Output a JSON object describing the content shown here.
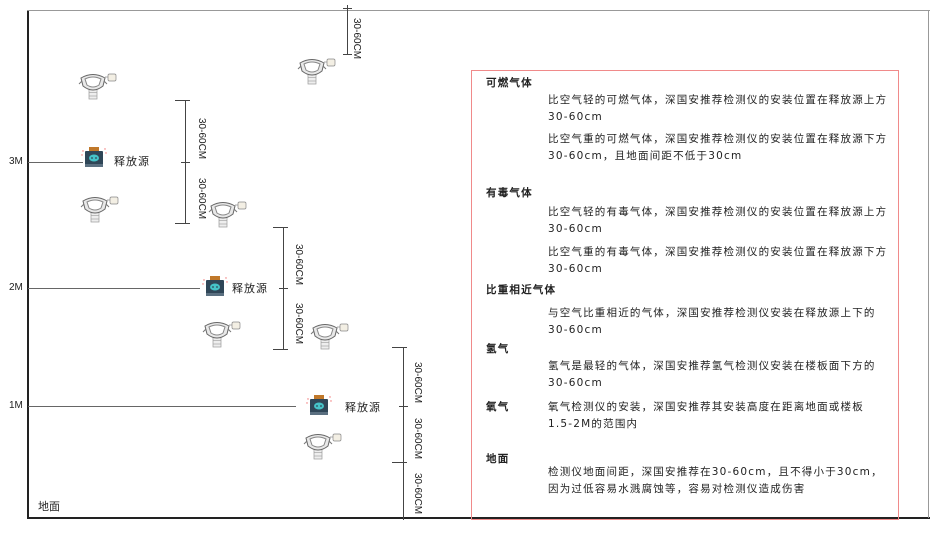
{
  "levels": {
    "l3": "3M",
    "l2": "2M",
    "l1": "1M",
    "ground": "地面"
  },
  "source_label": "释放源",
  "dimension_label": "30-60CM",
  "colors": {
    "notes_border": "#f08a8a",
    "source_body": "#2f4657",
    "source_cap": "#c0782a",
    "source_face": "#46c3c8"
  },
  "notes": {
    "combustible": {
      "title": "可燃气体",
      "lighter": "比空气轻的可燃气体，深国安推荐检测仪的安装位置在释放源上方30-60cm",
      "heavier": "比空气重的可燃气体，深国安推荐检测仪的安装位置在释放源下方30-60cm，且地面间距不低于30cm"
    },
    "toxic": {
      "title": "有毒气体",
      "lighter": "比空气轻的有毒气体，深国安推荐检测仪的安装位置在释放源上方30-60cm",
      "heavier": "比空气重的有毒气体，深国安推荐检测仪的安装位置在释放源下方30-60cm"
    },
    "similar": {
      "title": "比重相近气体",
      "text": "与空气比重相近的气体，深国安推荐检测仪安装在释放源上下的30-60cm"
    },
    "hydrogen": {
      "title": "氢气",
      "text": "氢气是最轻的气体，深国安推荐氢气检测仪安装在楼板面下方的30-60cm"
    },
    "oxygen": {
      "title": "氧气",
      "text": "氧气检测仪的安装，深国安推荐其安装高度在距离地面或楼板1.5-2M的范围内"
    },
    "ground": {
      "title": "地面",
      "text": "检测仪地面间距，深国安推荐在30-60cm，且不得小于30cm，因为过低容易水溅腐蚀等，容易对检测仪造成伤害"
    }
  }
}
